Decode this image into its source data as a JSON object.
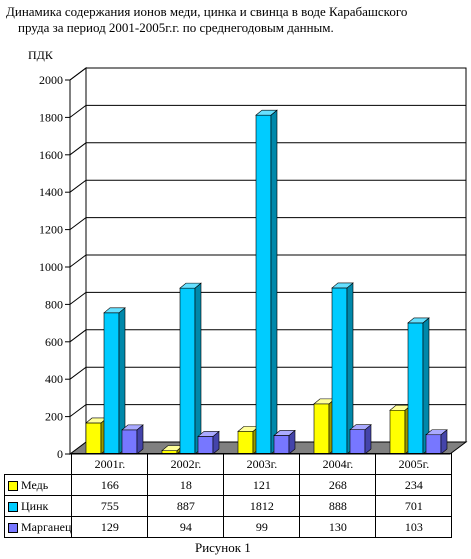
{
  "title_line1": "Динамика содержания ионов меди, цинка и свинца в воде Карабашского",
  "title_line2": "пруда за период 2001-2005г.г. по среднегодовым данным.",
  "caption": "Рисунок 1",
  "chart_data": {
    "type": "bar",
    "title": "Динамика содержания ионов меди, цинка и свинца в воде Карабашского пруда за период 2001-2005г.г. по среднегодовым данным.",
    "ylabel": "ПДК",
    "xlabel": "",
    "ylim": [
      0,
      2000
    ],
    "yticks": [
      0,
      200,
      400,
      600,
      800,
      1000,
      1200,
      1400,
      1600,
      1800,
      2000
    ],
    "grid": true,
    "legend": "table-below",
    "categories": [
      "2001г.",
      "2002г.",
      "2003г.",
      "2004г.",
      "2005г."
    ],
    "series": [
      {
        "name": "Медь",
        "values": [
          166,
          18,
          121,
          268,
          234
        ],
        "color": "#ffff00",
        "side": "#999900",
        "top": "#ffff99"
      },
      {
        "name": "Цинк",
        "values": [
          755,
          887,
          1812,
          888,
          701
        ],
        "color": "#00ccff",
        "side": "#0088aa",
        "top": "#66e0ff"
      },
      {
        "name": "Марганец",
        "values": [
          129,
          94,
          99,
          130,
          103
        ],
        "color": "#7777ff",
        "side": "#4444aa",
        "top": "#aaaaff"
      }
    ]
  }
}
